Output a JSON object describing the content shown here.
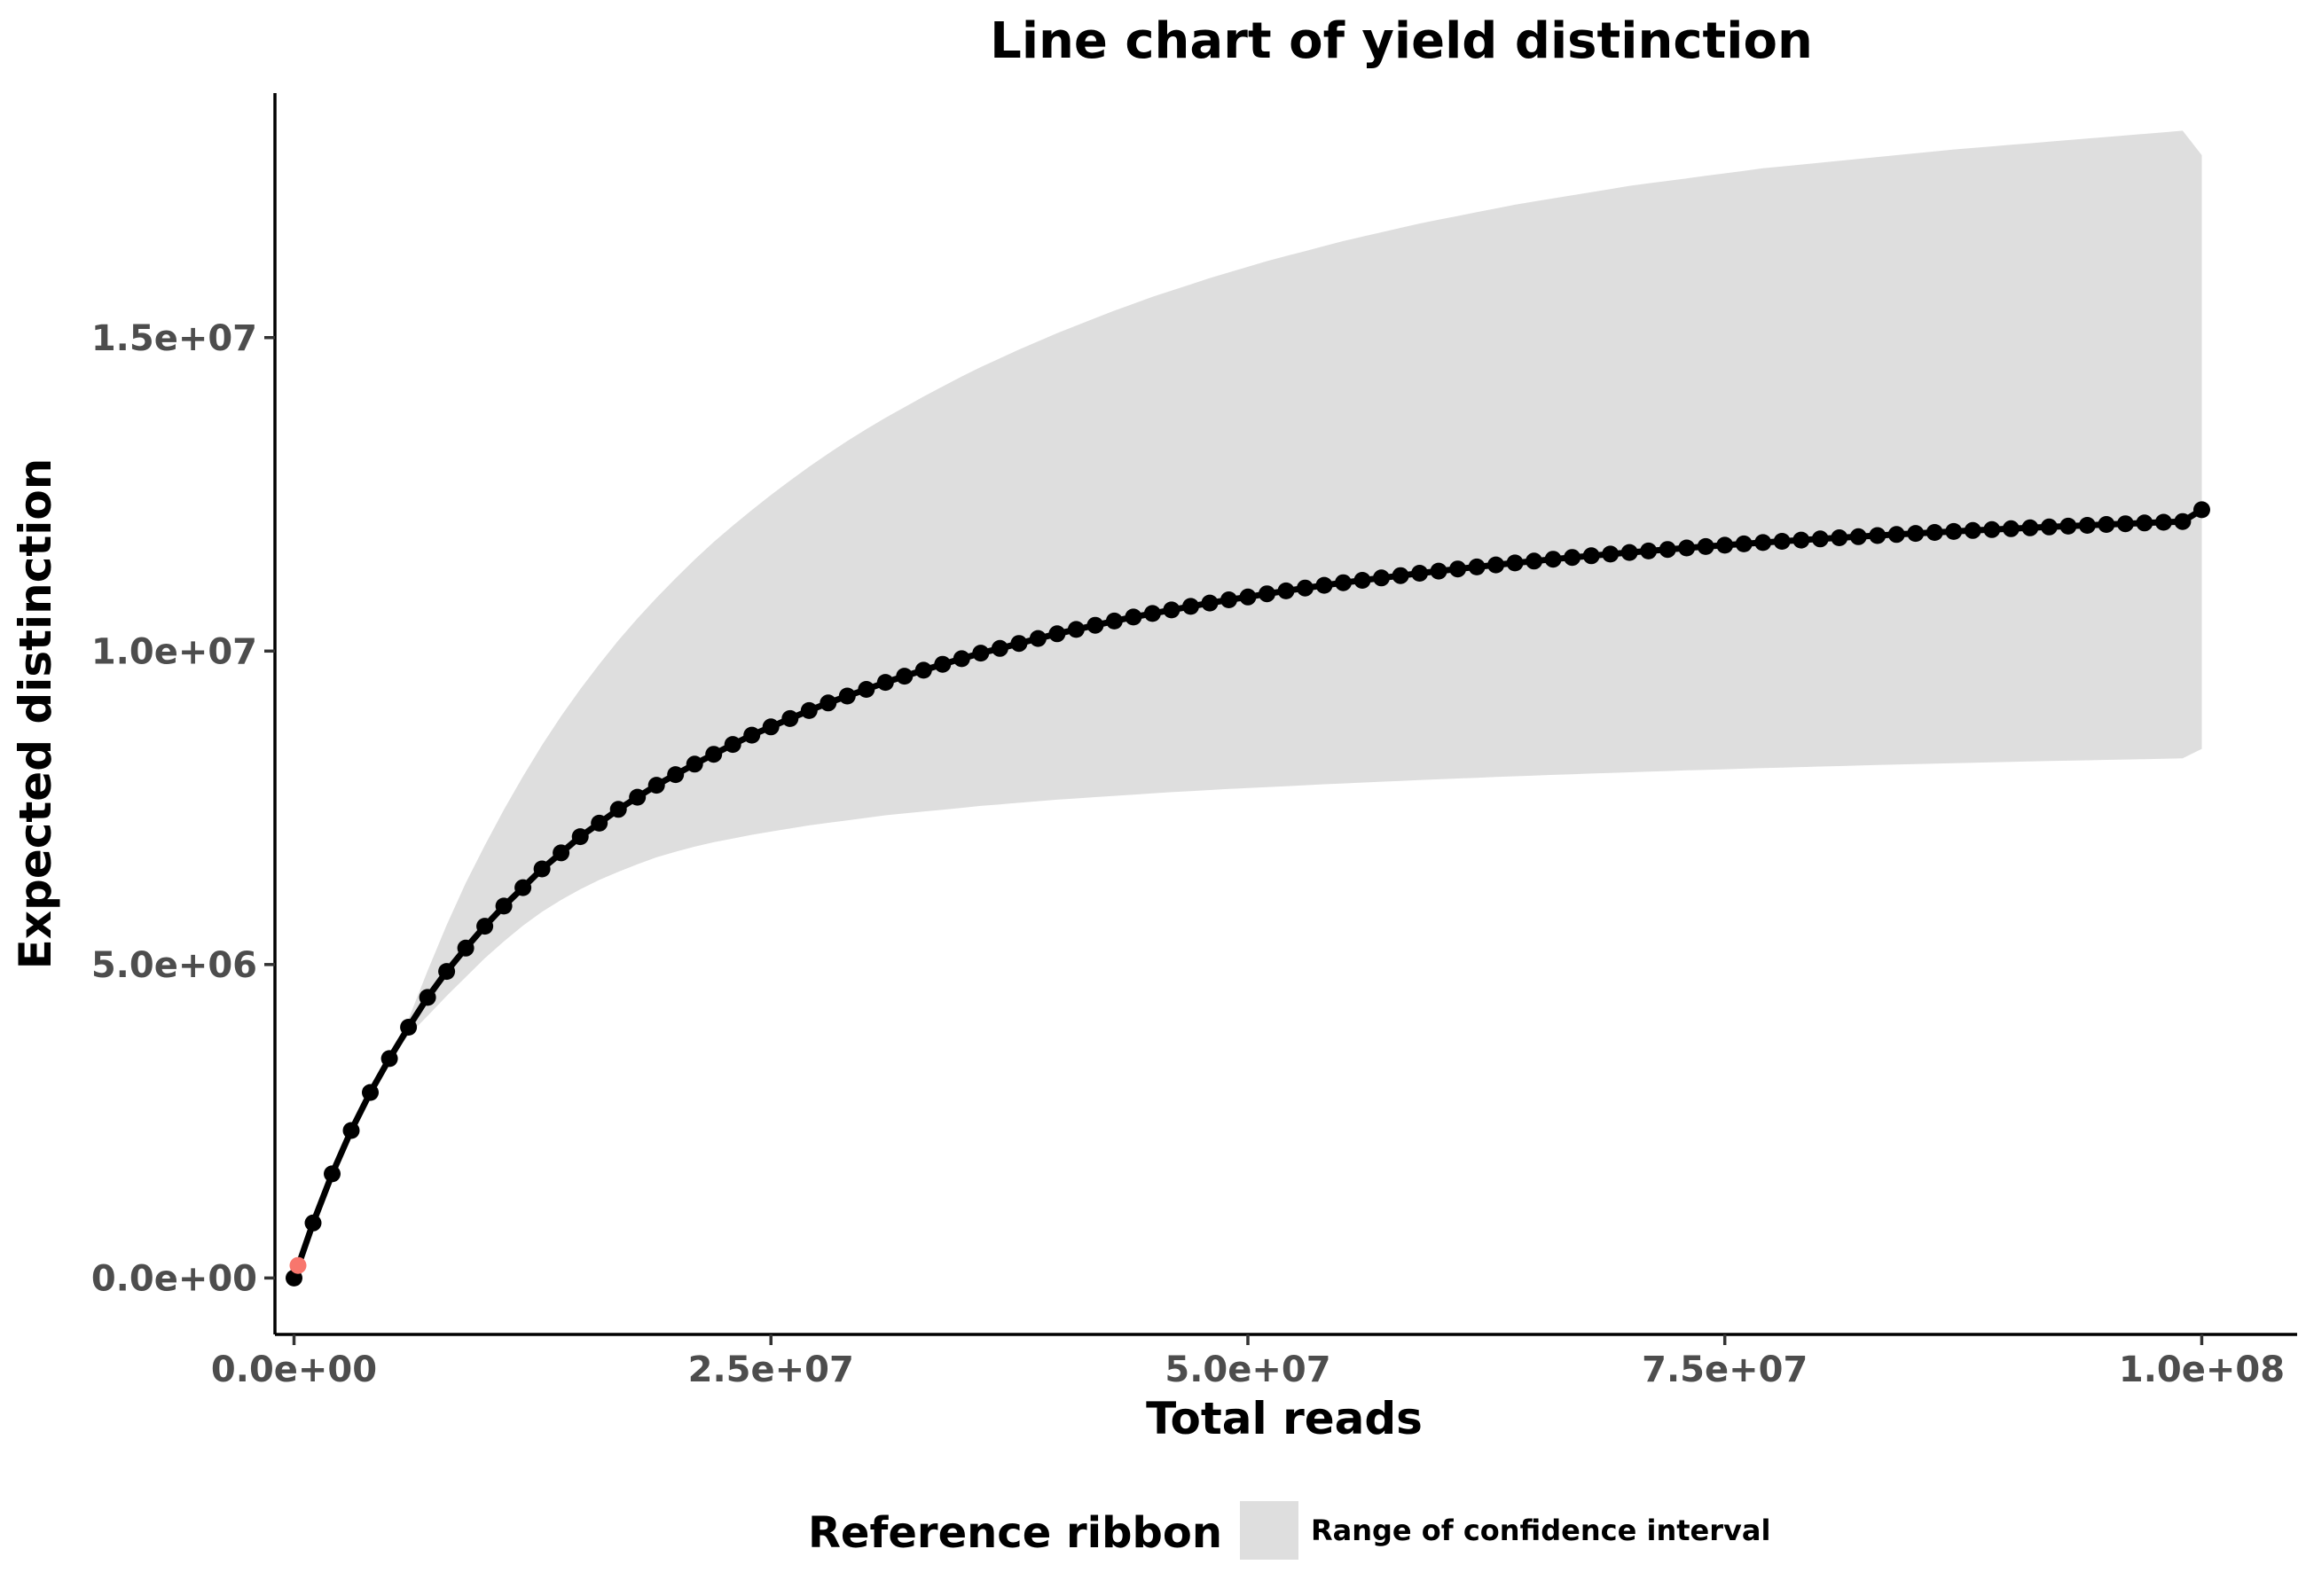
{
  "chart_data": {
    "type": "line",
    "title": "Line chart of yield distinction",
    "xlabel": "Total reads",
    "ylabel": "Expected distinction",
    "xlim": [
      -1000000,
      105000000
    ],
    "ylim": [
      -900000,
      18900000
    ],
    "x_ticks": [
      {
        "value": 0,
        "label": "0.0e+00"
      },
      {
        "value": 25000000,
        "label": "2.5e+07"
      },
      {
        "value": 50000000,
        "label": "5.0e+07"
      },
      {
        "value": 75000000,
        "label": "7.5e+07"
      },
      {
        "value": 100000000,
        "label": "1.0e+08"
      }
    ],
    "y_ticks": [
      {
        "value": 0,
        "label": "0.0e+00"
      },
      {
        "value": 5000000,
        "label": "5.0e+06"
      },
      {
        "value": 10000000,
        "label": "1.0e+07"
      },
      {
        "value": 15000000,
        "label": "1.5e+07"
      }
    ],
    "grid": false,
    "legend": {
      "position": "bottom",
      "title": "Reference ribbon",
      "label": "Range of confidence interval"
    },
    "colors": {
      "line": "#000000",
      "ribbon": "#dedede",
      "highlight_point": "#f8766d"
    },
    "series": [
      {
        "x": [
          0,
          1000000,
          2000000,
          3000000,
          4000000,
          5000000,
          6000000,
          7000000,
          8000000,
          9000000,
          10000000,
          11000000,
          12000000,
          13000000,
          14000000,
          15000000,
          16000000,
          17000000,
          18000000,
          19000000,
          20000000,
          21000000,
          22000000,
          23000000,
          24000000,
          25000000,
          26000000,
          27000000,
          28000000,
          29000000,
          30000000,
          31000000,
          32000000,
          33000000,
          34000000,
          35000000,
          36000000,
          37000000,
          38000000,
          39000000,
          40000000,
          41000000,
          42000000,
          43000000,
          44000000,
          45000000,
          46000000,
          47000000,
          48000000,
          49000000,
          50000000,
          51000000,
          52000000,
          53000000,
          54000000,
          55000000,
          56000000,
          57000000,
          58000000,
          59000000,
          60000000,
          61000000,
          62000000,
          63000000,
          64000000,
          65000000,
          66000000,
          67000000,
          68000000,
          69000000,
          70000000,
          71000000,
          72000000,
          73000000,
          74000000,
          75000000,
          76000000,
          77000000,
          78000000,
          79000000,
          80000000,
          81000000,
          82000000,
          83000000,
          84000000,
          85000000,
          86000000,
          87000000,
          88000000,
          89000000,
          90000000,
          91000000,
          92000000,
          93000000,
          94000000,
          95000000,
          96000000,
          97000000,
          98000000,
          99000000,
          100000000
        ],
        "y": [
          0,
          878000,
          1661000,
          2353000,
          2960000,
          3500000,
          4000000,
          4476000,
          4890000,
          5262000,
          5612000,
          5933000,
          6226000,
          6525000,
          6781000,
          7040000,
          7255000,
          7475000,
          7669000,
          7860000,
          8030000,
          8196000,
          8353000,
          8511000,
          8659000,
          8790000,
          8923000,
          9051000,
          9172000,
          9283000,
          9389000,
          9500000,
          9600000,
          9695000,
          9789000,
          9878000,
          9967000,
          10043000,
          10121000,
          10201000,
          10276000,
          10345000,
          10412000,
          10480000,
          10543000,
          10599000,
          10656000,
          10713000,
          10767000,
          10818000,
          10863000,
          10914000,
          10960000,
          11006000,
          11050000,
          11090000,
          11128000,
          11166000,
          11204000,
          11241000,
          11276000,
          11310000,
          11342000,
          11375000,
          11406000,
          11436000,
          11465000,
          11493000,
          11520000,
          11547000,
          11572000,
          11597000,
          11621000,
          11645000,
          11667000,
          11689000,
          11710000,
          11731000,
          11751000,
          11770000,
          11789000,
          11807000,
          11825000,
          11843000,
          11860000,
          11876000,
          11892000,
          11908000,
          11923000,
          11938000,
          11952000,
          11966000,
          11980000,
          11993000,
          12006000,
          12019000,
          12031000,
          12043000,
          12055000,
          12066000,
          12254000
        ],
        "lower": [
          0,
          878000,
          1661000,
          2353000,
          2960000,
          3495000,
          3870000,
          4180000,
          4500000,
          4800000,
          5100000,
          5370000,
          5620000,
          5840000,
          6030000,
          6200000,
          6350000,
          6480000,
          6600000,
          6710000,
          6800000,
          6880000,
          6950000,
          7010000,
          7070000,
          7120000,
          7170000,
          7220000,
          7260000,
          7300000,
          7340000,
          7380000,
          7410000,
          7440000,
          7470000,
          7500000,
          7530000,
          7555000,
          7580000,
          7605000,
          7630000,
          7650000,
          7670000,
          7690000,
          7710000,
          7730000,
          7750000,
          7767000,
          7784000,
          7800000,
          7815000,
          7830000,
          7845000,
          7860000,
          7875000,
          7889000,
          7903000,
          7916000,
          7929000,
          7942000,
          7955000,
          7967000,
          7979000,
          7991000,
          8003000,
          8014000,
          8025000,
          8036000,
          8047000,
          8057000,
          8067000,
          8077000,
          8087000,
          8097000,
          8106000,
          8115000,
          8124000,
          8133000,
          8142000,
          8150000,
          8158000,
          8166000,
          8174000,
          8182000,
          8190000,
          8198000,
          8205000,
          8212000,
          8219000,
          8226000,
          8233000,
          8240000,
          8246000,
          8252000,
          8258000,
          8264000,
          8270000,
          8276000,
          8282000,
          8288000,
          8440000
        ],
        "upper": [
          0,
          878000,
          1661000,
          2353000,
          2960000,
          3510000,
          4130000,
          4900000,
          5630000,
          6300000,
          6900000,
          7470000,
          8000000,
          8500000,
          8960000,
          9390000,
          9790000,
          10170000,
          10520000,
          10850000,
          11160000,
          11460000,
          11740000,
          12000000,
          12250000,
          12490000,
          12720000,
          12940000,
          13150000,
          13350000,
          13540000,
          13720000,
          13890000,
          14060000,
          14220000,
          14380000,
          14530000,
          14670000,
          14810000,
          14940000,
          15070000,
          15190000,
          15310000,
          15430000,
          15540000,
          15650000,
          15750000,
          15850000,
          15950000,
          16040000,
          16130000,
          16220000,
          16300000,
          16380000,
          16460000,
          16540000,
          16610000,
          16680000,
          16750000,
          16820000,
          16880000,
          16940000,
          17000000,
          17060000,
          17120000,
          17170000,
          17220000,
          17270000,
          17320000,
          17370000,
          17420000,
          17460000,
          17500000,
          17540000,
          17580000,
          17620000,
          17660000,
          17700000,
          17730000,
          17760000,
          17790000,
          17820000,
          17850000,
          17880000,
          17910000,
          17940000,
          17970000,
          18000000,
          18025000,
          18050000,
          18075000,
          18100000,
          18125000,
          18150000,
          18175000,
          18200000,
          18225000,
          18250000,
          18275000,
          18300000,
          17910000
        ]
      }
    ],
    "highlight_point": {
      "x": 210000,
      "y": 200000
    }
  }
}
